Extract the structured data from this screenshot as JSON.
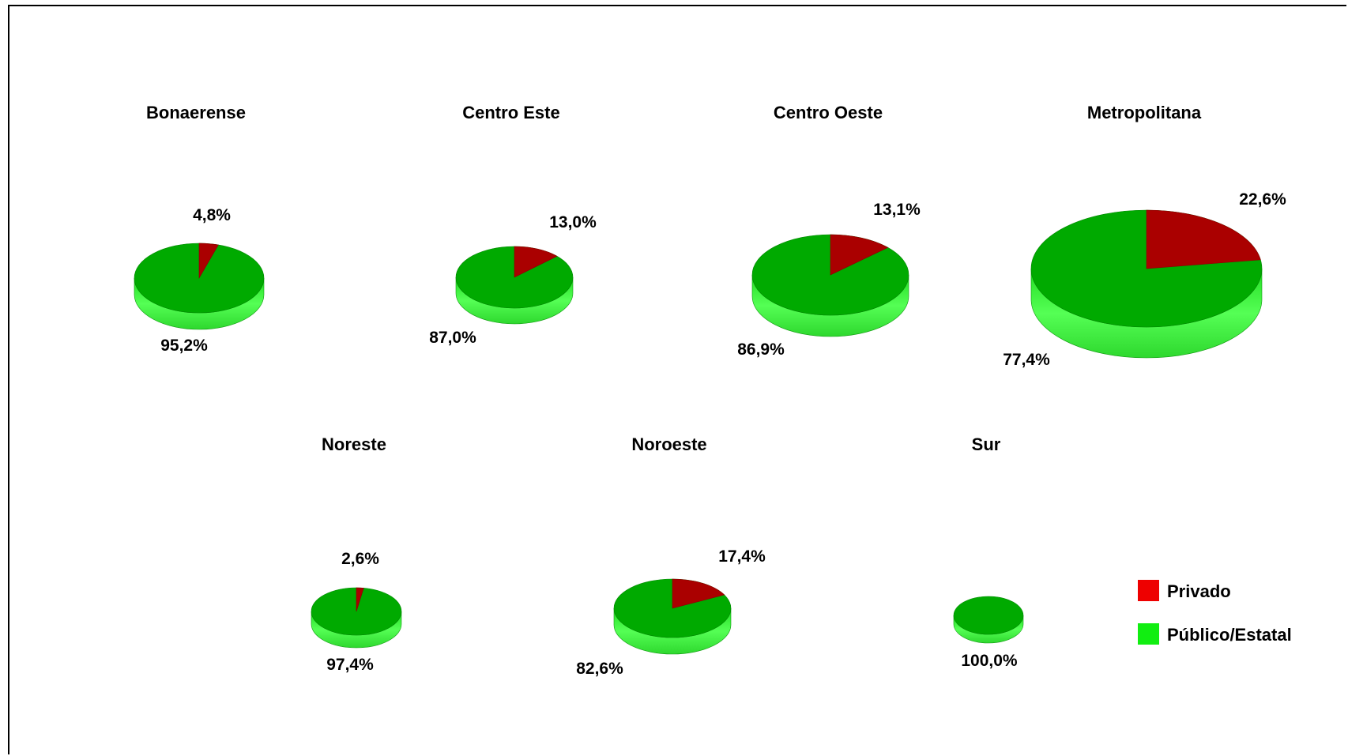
{
  "chart_data": {
    "type": "pie",
    "legend": {
      "position": "right",
      "items": [
        {
          "label": "Privado",
          "color": "#ee0000"
        },
        {
          "label": "Público/Estatal",
          "color": "#11ee11"
        }
      ]
    },
    "series_names": [
      "Privado",
      "Público/Estatal"
    ],
    "charts": [
      {
        "title": "Bonaerense",
        "values": [
          4.8,
          95.2
        ],
        "labels": [
          "4,8%",
          "95,2%"
        ]
      },
      {
        "title": "Centro Este",
        "values": [
          13.0,
          87.0
        ],
        "labels": [
          "13,0%",
          "87,0%"
        ]
      },
      {
        "title": "Centro Oeste",
        "values": [
          13.1,
          86.9
        ],
        "labels": [
          "13,1%",
          "86,9%"
        ]
      },
      {
        "title": "Metropolitana",
        "values": [
          22.6,
          77.4
        ],
        "labels": [
          "22,6%",
          "77,4%"
        ]
      },
      {
        "title": "Noreste",
        "values": [
          2.6,
          97.4
        ],
        "labels": [
          "2,6%",
          "97,4%"
        ]
      },
      {
        "title": "Noroeste",
        "values": [
          17.4,
          82.6
        ],
        "labels": [
          "17,4%",
          "82,6%"
        ]
      },
      {
        "title": "Sur",
        "values": [
          0.0,
          100.0
        ],
        "labels": [
          "",
          "100,0%"
        ]
      }
    ]
  }
}
